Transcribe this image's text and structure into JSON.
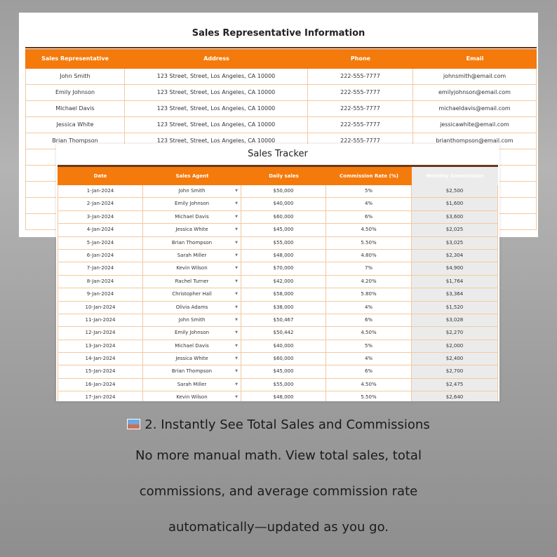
{
  "rep_table": {
    "title": "Sales Representative Information",
    "headers": [
      "Sales Representative",
      "Address",
      "Phone",
      "Email"
    ],
    "rows": [
      [
        "John Smith",
        "123 Street, Street, Los Angeles, CA 10000",
        "222-555-7777",
        "johnsmith@email.com"
      ],
      [
        "Emily Johnson",
        "123 Street, Street, Los Angeles, CA 10000",
        "222-555-7777",
        "emilyjohnson@email.com"
      ],
      [
        "Michael Davis",
        "123 Street, Street, Los Angeles, CA 10000",
        "222-555-7777",
        "michaeldavis@email.com"
      ],
      [
        "Jessica White",
        "123 Street, Street, Los Angeles, CA 10000",
        "222-555-7777",
        "jessicawhite@email.com"
      ],
      [
        "Brian Thompson",
        "123 Street, Street, Los Angeles, CA 10000",
        "222-555-7777",
        "brianthompson@email.com"
      ],
      [
        "",
        "",
        "",
        "om"
      ],
      [
        "",
        "",
        "",
        "om"
      ],
      [
        "",
        "",
        "",
        "om"
      ],
      [
        "",
        "",
        "",
        "com"
      ],
      [
        "",
        "",
        "",
        "om"
      ]
    ]
  },
  "tracker": {
    "title": "Sales Tracker",
    "headers": [
      "Date",
      "Sales Agent",
      "Daily sales",
      "Commission Rate (%)",
      "Monthly Commission"
    ],
    "rows": [
      [
        "1-Jan-2024",
        "John Smith",
        "$50,000",
        "5%",
        "$2,500"
      ],
      [
        "2-Jan-2024",
        "Emily Johnson",
        "$40,000",
        "4%",
        "$1,600"
      ],
      [
        "3-Jan-2024",
        "Michael Davis",
        "$60,000",
        "6%",
        "$3,600"
      ],
      [
        "4-Jan-2024",
        "Jessica White",
        "$45,000",
        "4.50%",
        "$2,025"
      ],
      [
        "5-Jan-2024",
        "Brian Thompson",
        "$55,000",
        "5.50%",
        "$3,025"
      ],
      [
        "6-Jan-2024",
        "Sarah Miller",
        "$48,000",
        "4.80%",
        "$2,304"
      ],
      [
        "7-Jan-2024",
        "Kevin Wilson",
        "$70,000",
        "7%",
        "$4,900"
      ],
      [
        "8-Jan-2024",
        "Rachel Turner",
        "$42,000",
        "4.20%",
        "$1,764"
      ],
      [
        "9-Jan-2024",
        "Christopher Hall",
        "$58,000",
        "5.80%",
        "$3,364"
      ],
      [
        "10-Jan-2024",
        "Olivia Adams",
        "$38,000",
        "4%",
        "$1,520"
      ],
      [
        "11-Jan-2024",
        "John Smith",
        "$50,467",
        "6%",
        "$3,028"
      ],
      [
        "12-Jan-2024",
        "Emily Johnson",
        "$50,442",
        "4.50%",
        "$2,270"
      ],
      [
        "13-Jan-2024",
        "Michael Davis",
        "$40,000",
        "5%",
        "$2,000"
      ],
      [
        "14-Jan-2024",
        "Jessica White",
        "$60,000",
        "4%",
        "$2,400"
      ],
      [
        "15-Jan-2024",
        "Brian Thompson",
        "$45,000",
        "6%",
        "$2,700"
      ],
      [
        "16-Jan-2024",
        "Sarah Miller",
        "$55,000",
        "4.50%",
        "$2,475"
      ],
      [
        "17-Jan-2024",
        "Kevin Wilson",
        "$48,000",
        "5.50%",
        "$2,640"
      ]
    ]
  },
  "caption": {
    "icon": "framed-picture-icon",
    "heading": "2. Instantly See Total Sales and Commissions",
    "lines": [
      "No more manual math. View total sales, total",
      "commissions, and average commission rate",
      "automatically—updated as you go."
    ]
  },
  "colors": {
    "header_orange": "#f47a0c",
    "rule_brown": "#5a3620",
    "grid_peach": "#f4c9a0",
    "commission_col_gray": "#ebebeb"
  }
}
